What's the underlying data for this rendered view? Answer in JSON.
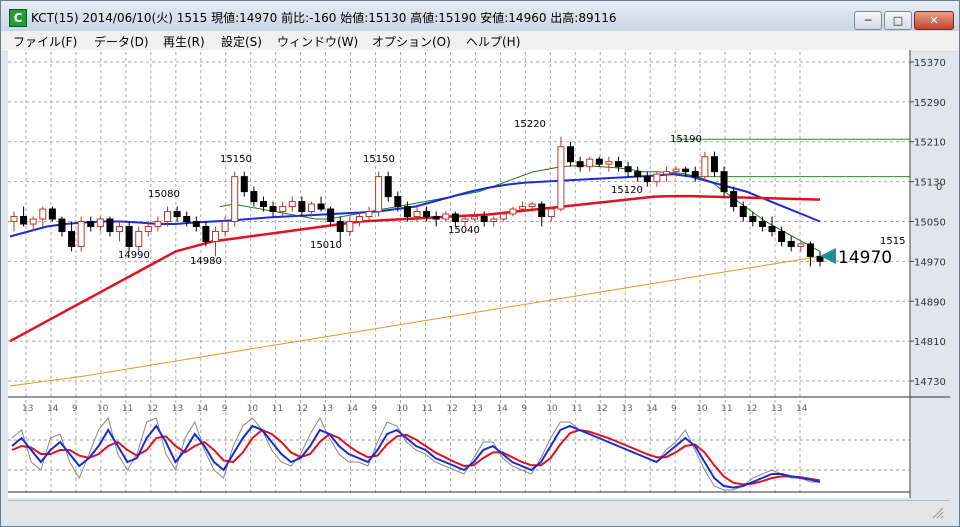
{
  "window": {
    "title": "KCT(15) 2014/06/10(火) 1515 現値:14970 前比:-160 始値:15130 高値:15190 安値:14960 出高:89116",
    "icon": "chart-app-icon",
    "controls": [
      "minimize",
      "maximize",
      "close"
    ]
  },
  "menu": [
    "ファイル(F)",
    "データ(D)",
    "再生(R)",
    "設定(S)",
    "ウィンドウ(W)",
    "オプション(O)",
    "ヘルプ(H)"
  ],
  "colors": {
    "up": "#c0392b",
    "down": "#000000",
    "ma_short": "#1f7a1f",
    "ma_mid": "#1a2bd6",
    "ma_long": "#e0121e",
    "ma_xlong": "#e8962e",
    "stoch_k": "#1a2bd6",
    "stoch_d": "#e0121e",
    "raw": "#888888",
    "marker": "#1f8f8f"
  },
  "chart_data": {
    "type": "candlestick",
    "symbol": "KCT",
    "interval": "15",
    "y_axis": {
      "ticks": [
        15370,
        15290,
        15210,
        15130,
        15050,
        14970,
        14890,
        14810,
        14730
      ],
      "range": [
        14700,
        15390
      ]
    },
    "x_axis": {
      "tick_labels": [
        "13",
        "14",
        "9",
        "10",
        "11",
        "12",
        "13",
        "14",
        "9",
        "10",
        "11",
        "12",
        "13",
        "14",
        "9",
        "10",
        "11",
        "12",
        "13",
        "14",
        "9",
        "10",
        "11",
        "12",
        "13",
        "14",
        "9",
        "10",
        "11",
        "12",
        "13",
        "14"
      ]
    },
    "price_labels": [
      {
        "label": "15080"
      },
      {
        "label": "14990"
      },
      {
        "label": "15150"
      },
      {
        "label": "14980"
      },
      {
        "label": "15150"
      },
      {
        "label": "15010"
      },
      {
        "label": "15040"
      },
      {
        "label": "15220"
      },
      {
        "label": "15190"
      },
      {
        "label": "15120"
      }
    ],
    "current_price": "14970",
    "current_time_label": "1515",
    "axis_extra_label": "0",
    "resistance_levels": [
      15215,
      15140
    ],
    "candles": [
      [
        15050,
        15070,
        15030,
        15060
      ],
      [
        15060,
        15080,
        15040,
        15045
      ],
      [
        15045,
        15060,
        15030,
        15055
      ],
      [
        15055,
        15080,
        15040,
        15075
      ],
      [
        15075,
        15080,
        15050,
        15055
      ],
      [
        15055,
        15060,
        15020,
        15030
      ],
      [
        15030,
        15050,
        14990,
        15000
      ],
      [
        15000,
        15060,
        14990,
        15050
      ],
      [
        15050,
        15060,
        15030,
        15040
      ],
      [
        15040,
        15060,
        15030,
        15055
      ],
      [
        15055,
        15060,
        15020,
        15030
      ],
      [
        15030,
        15050,
        15010,
        15040
      ],
      [
        15040,
        15050,
        14990,
        15000
      ],
      [
        15000,
        15040,
        14990,
        15030
      ],
      [
        15030,
        15050,
        15020,
        15040
      ],
      [
        15040,
        15060,
        15030,
        15050
      ],
      [
        15050,
        15080,
        15040,
        15070
      ],
      [
        15070,
        15080,
        15050,
        15060
      ],
      [
        15060,
        15070,
        15040,
        15050
      ],
      [
        15050,
        15060,
        15030,
        15040
      ],
      [
        15040,
        15050,
        15000,
        15010
      ],
      [
        15010,
        15040,
        14980,
        15030
      ],
      [
        15030,
        15060,
        15020,
        15050
      ],
      [
        15050,
        15150,
        15040,
        15140
      ],
      [
        15140,
        15150,
        15100,
        15110
      ],
      [
        15110,
        15120,
        15080,
        15090
      ],
      [
        15090,
        15100,
        15070,
        15080
      ],
      [
        15080,
        15090,
        15060,
        15070
      ],
      [
        15070,
        15090,
        15060,
        15080
      ],
      [
        15080,
        15100,
        15070,
        15090
      ],
      [
        15090,
        15100,
        15060,
        15070
      ],
      [
        15070,
        15090,
        15060,
        15085
      ],
      [
        15085,
        15100,
        15070,
        15075
      ],
      [
        15075,
        15080,
        15040,
        15050
      ],
      [
        15050,
        15060,
        15010,
        15030
      ],
      [
        15030,
        15060,
        15020,
        15050
      ],
      [
        15050,
        15070,
        15040,
        15060
      ],
      [
        15060,
        15080,
        15050,
        15070
      ],
      [
        15070,
        15150,
        15060,
        15140
      ],
      [
        15140,
        15150,
        15090,
        15100
      ],
      [
        15100,
        15110,
        15070,
        15080
      ],
      [
        15080,
        15090,
        15050,
        15060
      ],
      [
        15060,
        15080,
        15050,
        15070
      ],
      [
        15070,
        15080,
        15050,
        15060
      ],
      [
        15060,
        15070,
        15040,
        15055
      ],
      [
        15055,
        15070,
        15050,
        15065
      ],
      [
        15065,
        15070,
        15040,
        15050
      ],
      [
        15050,
        15060,
        15040,
        15055
      ],
      [
        15055,
        15070,
        15050,
        15060
      ],
      [
        15060,
        15070,
        15040,
        15050
      ],
      [
        15050,
        15060,
        15040,
        15055
      ],
      [
        15055,
        15070,
        15050,
        15065
      ],
      [
        15065,
        15080,
        15060,
        15075
      ],
      [
        15075,
        15090,
        15070,
        15080
      ],
      [
        15080,
        15090,
        15070,
        15085
      ],
      [
        15085,
        15090,
        15040,
        15060
      ],
      [
        15060,
        15080,
        15050,
        15075
      ],
      [
        15075,
        15220,
        15070,
        15200
      ],
      [
        15200,
        15210,
        15160,
        15170
      ],
      [
        15170,
        15180,
        15150,
        15160
      ],
      [
        15160,
        15180,
        15150,
        15175
      ],
      [
        15175,
        15180,
        15160,
        15165
      ],
      [
        15165,
        15180,
        15150,
        15170
      ],
      [
        15170,
        15180,
        15150,
        15160
      ],
      [
        15160,
        15170,
        15140,
        15150
      ],
      [
        15150,
        15160,
        15130,
        15140
      ],
      [
        15140,
        15150,
        15120,
        15130
      ],
      [
        15130,
        15150,
        15120,
        15145
      ],
      [
        15145,
        15160,
        15130,
        15150
      ],
      [
        15150,
        15160,
        15140,
        15155
      ],
      [
        15155,
        15160,
        15140,
        15150
      ],
      [
        15150,
        15160,
        15130,
        15140
      ],
      [
        15140,
        15190,
        15130,
        15180
      ],
      [
        15180,
        15190,
        15140,
        15150
      ],
      [
        15150,
        15160,
        15100,
        15110
      ],
      [
        15110,
        15120,
        15070,
        15080
      ],
      [
        15080,
        15090,
        15050,
        15060
      ],
      [
        15060,
        15070,
        15040,
        15050
      ],
      [
        15050,
        15060,
        15030,
        15040
      ],
      [
        15040,
        15060,
        15020,
        15030
      ],
      [
        15030,
        15040,
        15000,
        15010
      ],
      [
        15010,
        15020,
        14990,
        15000
      ],
      [
        15000,
        15010,
        14990,
        15005
      ],
      [
        15005,
        15010,
        14960,
        14980
      ],
      [
        14980,
        14990,
        14960,
        14970
      ]
    ],
    "moving_averages": [
      {
        "name": "short",
        "values": [
          15080,
          15085,
          15080,
          15075,
          15070,
          15065,
          15060,
          15055,
          15055,
          15060,
          15065,
          15070,
          15075,
          15080,
          15085,
          15090,
          15095,
          15100,
          15105,
          15110,
          15120,
          15130,
          15140,
          15150,
          15155,
          15160,
          15162,
          15162,
          15160,
          15158,
          15155,
          15150,
          15150,
          15148,
          15146,
          15140,
          15130,
          15110,
          15090,
          15070,
          15050,
          15035,
          15020,
          15005,
          14990
        ]
      },
      {
        "name": "mid",
        "values": [
          15020,
          15030,
          15040,
          15045,
          15048,
          15050,
          15050,
          15048,
          15045,
          15045,
          15048,
          15050,
          15052,
          15055,
          15058,
          15060,
          15062,
          15064,
          15066,
          15068,
          15070,
          15075,
          15080,
          15090,
          15100,
          15110,
          15118,
          15124,
          15128,
          15130,
          15132,
          15134,
          15136,
          15138,
          15140,
          15142,
          15145,
          15140,
          15130,
          15120,
          15110,
          15095,
          15080,
          15065,
          15050
        ]
      },
      {
        "name": "long",
        "values": [
          14810,
          14830,
          14850,
          14870,
          14890,
          14910,
          14930,
          14950,
          14970,
          14990,
          15000,
          15010,
          15015,
          15020,
          15025,
          15030,
          15035,
          15040,
          15045,
          15050,
          15052,
          15054,
          15056,
          15058,
          15060,
          15062,
          15064,
          15068,
          15072,
          15076,
          15080,
          15084,
          15088,
          15092,
          15096,
          15100,
          15101,
          15101,
          15100,
          15099,
          15098,
          15097,
          15096,
          15095,
          15094
        ]
      },
      {
        "name": "xlong",
        "values": [
          14720,
          14725,
          14730,
          14735,
          14740,
          14746,
          14752,
          14758,
          14764,
          14770,
          14776,
          14782,
          14788,
          14794,
          14800,
          14806,
          14812,
          14818,
          14824,
          14830,
          14836,
          14842,
          14848,
          14854,
          14860,
          14866,
          14872,
          14878,
          14884,
          14890,
          14896,
          14902,
          14908,
          14914,
          14920,
          14926,
          14932,
          14938,
          14944,
          14950,
          14956,
          14962,
          14968,
          14974,
          14980
        ]
      }
    ],
    "oscillator": {
      "k": [
        60,
        70,
        55,
        40,
        55,
        65,
        50,
        35,
        45,
        60,
        80,
        60,
        40,
        45,
        70,
        85,
        65,
        40,
        55,
        75,
        60,
        40,
        30,
        50,
        70,
        85,
        80,
        65,
        50,
        40,
        45,
        60,
        80,
        75,
        60,
        50,
        45,
        40,
        55,
        75,
        80,
        70,
        60,
        55,
        45,
        40,
        35,
        30,
        40,
        55,
        60,
        50,
        40,
        35,
        30,
        40,
        60,
        80,
        85,
        80,
        75,
        70,
        65,
        60,
        55,
        50,
        45,
        40,
        50,
        60,
        70,
        60,
        40,
        20,
        10,
        8,
        10,
        15,
        20,
        25,
        25,
        22,
        20,
        18,
        15
      ],
      "d": [
        55,
        60,
        58,
        50,
        50,
        55,
        55,
        48,
        45,
        50,
        60,
        65,
        55,
        48,
        55,
        70,
        72,
        60,
        52,
        60,
        65,
        55,
        42,
        40,
        52,
        70,
        80,
        75,
        65,
        52,
        46,
        50,
        65,
        75,
        70,
        60,
        52,
        46,
        48,
        62,
        72,
        74,
        68,
        60,
        52,
        46,
        40,
        35,
        36,
        45,
        52,
        52,
        46,
        40,
        36,
        36,
        45,
        62,
        76,
        80,
        78,
        74,
        70,
        65,
        60,
        55,
        50,
        46,
        46,
        52,
        60,
        62,
        52,
        36,
        22,
        14,
        12,
        13,
        16,
        20,
        22,
        22,
        21,
        19,
        17
      ],
      "raw": [
        70,
        80,
        40,
        30,
        70,
        75,
        40,
        20,
        50,
        80,
        95,
        50,
        30,
        50,
        90,
        95,
        50,
        30,
        70,
        90,
        55,
        30,
        20,
        60,
        85,
        95,
        80,
        55,
        40,
        35,
        50,
        75,
        95,
        70,
        50,
        40,
        40,
        35,
        65,
        90,
        85,
        65,
        55,
        50,
        40,
        35,
        30,
        25,
        45,
        65,
        65,
        45,
        35,
        30,
        25,
        45,
        70,
        90,
        90,
        80,
        75,
        70,
        65,
        60,
        55,
        50,
        45,
        40,
        55,
        65,
        80,
        55,
        30,
        10,
        5,
        5,
        10,
        20,
        25,
        30,
        25,
        20,
        20,
        15,
        15
      ]
    }
  }
}
